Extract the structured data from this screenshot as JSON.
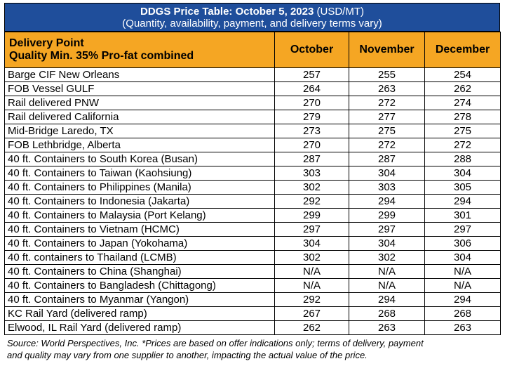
{
  "title": {
    "bold": "DDGS Price Table: October 5, 2023",
    "unit": "(USD/MT)",
    "subtitle": "(Quantity, availability, payment, and delivery terms vary)"
  },
  "header": {
    "col1_line1": "Delivery Point",
    "col1_line2": "Quality Min. 35% Pro-fat combined",
    "months": [
      "October",
      "November",
      "December"
    ]
  },
  "rows": [
    {
      "location": "Barge CIF New Orleans",
      "values": [
        "257",
        "255",
        "254"
      ]
    },
    {
      "location": "FOB Vessel GULF",
      "values": [
        "264",
        "263",
        "262"
      ]
    },
    {
      "location": "Rail delivered PNW",
      "values": [
        "270",
        "272",
        "274"
      ]
    },
    {
      "location": "Rail delivered California",
      "values": [
        "279",
        "277",
        "278"
      ]
    },
    {
      "location": "Mid-Bridge Laredo, TX",
      "values": [
        "273",
        "275",
        "275"
      ]
    },
    {
      "location": "FOB Lethbridge, Alberta",
      "values": [
        "270",
        "272",
        "272"
      ]
    },
    {
      "location": "40 ft. Containers to South Korea (Busan)",
      "values": [
        "287",
        "287",
        "288"
      ]
    },
    {
      "location": "40 ft. Containers to Taiwan (Kaohsiung)",
      "values": [
        "303",
        "304",
        "304"
      ]
    },
    {
      "location": "40 ft. Containers to Philippines (Manila)",
      "values": [
        "302",
        "303",
        "305"
      ]
    },
    {
      "location": "40 ft. Containers to Indonesia (Jakarta)",
      "values": [
        "292",
        "294",
        "294"
      ]
    },
    {
      "location": "40 ft. Containers to Malaysia (Port Kelang)",
      "values": [
        "299",
        "299",
        "301"
      ]
    },
    {
      "location": "40 ft. Containers to Vietnam (HCMC)",
      "values": [
        "297",
        "297",
        "297"
      ]
    },
    {
      "location": "40 ft. Containers to Japan (Yokohama)",
      "values": [
        "304",
        "304",
        "306"
      ]
    },
    {
      "location": "40 ft. containers to Thailand (LCMB)",
      "values": [
        "302",
        "302",
        "304"
      ]
    },
    {
      "location": "40 ft. Containers to China (Shanghai)",
      "values": [
        "N/A",
        "N/A",
        "N/A"
      ]
    },
    {
      "location": "40 ft. Containers to Bangladesh (Chittagong)",
      "values": [
        "N/A",
        "N/A",
        "N/A"
      ]
    },
    {
      "location": "40 ft. Containers to Myanmar (Yangon)",
      "values": [
        "292",
        "294",
        "294"
      ]
    },
    {
      "location": "KC Rail Yard (delivered ramp)",
      "values": [
        "267",
        "268",
        "268"
      ]
    },
    {
      "location": "Elwood, IL Rail Yard (delivered ramp)",
      "values": [
        "262",
        "263",
        "263"
      ]
    }
  ],
  "source": {
    "line1": "Source: World Perspectives, Inc. *Prices are based on offer indications only; terms of delivery, payment",
    "line2": "and quality may vary from one supplier to another, impacting the actual value of the price."
  },
  "colors": {
    "title_bg": "#1f4e9b",
    "header_bg": "#f5a623"
  }
}
